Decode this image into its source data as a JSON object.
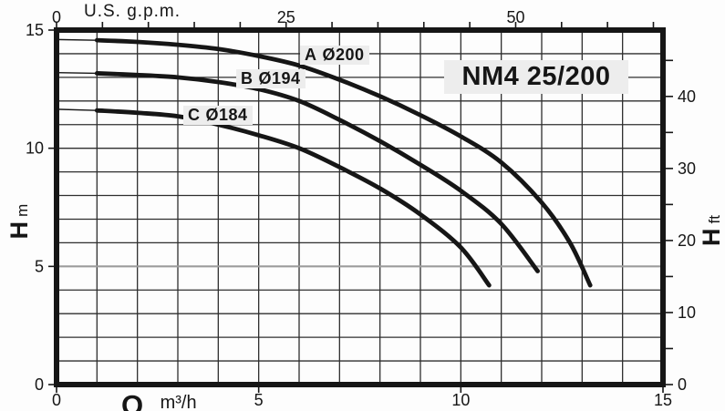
{
  "title": "NM4 25/200",
  "colors": {
    "ink": "#161616",
    "grid": "#2e2e2e",
    "gray_line": "#9c9c9c",
    "background": "#fdfdfd",
    "label_bg": "#ededed"
  },
  "chart_data": {
    "type": "line",
    "title": "NM4 25/200",
    "x_axis_bottom": {
      "label_prefix": "Q",
      "unit": "m³/h",
      "min": 0,
      "max": 15,
      "grid_step": 1,
      "ticks": [
        {
          "v": 0,
          "label": "0"
        },
        {
          "v": 5,
          "label": "5"
        },
        {
          "v": 10,
          "label": "10"
        },
        {
          "v": 15,
          "label": "15"
        }
      ]
    },
    "x_axis_top": {
      "title": "U.S. g.p.m.",
      "unit": "U.S. g.p.m.",
      "gpm_per_m3h": 4.4029,
      "minor_step_gpm": 5,
      "minor_max_gpm": 65,
      "ticks": [
        {
          "gpm": 0,
          "label": "0"
        },
        {
          "gpm": 25,
          "label": "25"
        },
        {
          "gpm": 50,
          "label": "50"
        }
      ]
    },
    "y_axis_left": {
      "label_prefix": "H",
      "unit": "m",
      "min": 0,
      "max": 15,
      "grid_step": 1,
      "gray_line_at": 5,
      "ticks": [
        {
          "v": 15,
          "label": "15"
        },
        {
          "v": 10,
          "label": "10"
        },
        {
          "v": 5,
          "label": "5"
        },
        {
          "v": 0,
          "label": "0"
        }
      ]
    },
    "y_axis_right": {
      "label_prefix": "H",
      "unit": "ft",
      "m_per_ft": 0.3048,
      "minor_step_ft": 5,
      "minor_max_ft": 45,
      "ticks": [
        {
          "ft": 40,
          "label": "40"
        },
        {
          "ft": 30,
          "label": "30"
        },
        {
          "ft": 20,
          "label": "20"
        },
        {
          "ft": 10,
          "label": "10"
        },
        {
          "ft": 0,
          "label": "0"
        }
      ]
    },
    "series": [
      {
        "id": "A",
        "diameter": "Ø200",
        "label": "A Ø200",
        "points": [
          [
            0,
            14.6
          ],
          [
            1,
            14.57
          ],
          [
            2,
            14.5
          ],
          [
            3,
            14.38
          ],
          [
            4,
            14.2
          ],
          [
            5,
            13.9
          ],
          [
            6,
            13.5
          ],
          [
            7,
            12.9
          ],
          [
            8,
            12.2
          ],
          [
            9,
            11.4
          ],
          [
            10,
            10.5
          ],
          [
            11,
            9.4
          ],
          [
            12,
            7.7
          ],
          [
            12.7,
            6.0
          ],
          [
            13.2,
            4.2
          ]
        ]
      },
      {
        "id": "B",
        "diameter": "Ø194",
        "label": "B Ø194",
        "points": [
          [
            0,
            13.2
          ],
          [
            1,
            13.17
          ],
          [
            2,
            13.1
          ],
          [
            3,
            13.0
          ],
          [
            4,
            12.8
          ],
          [
            5,
            12.5
          ],
          [
            6,
            12.0
          ],
          [
            7,
            11.2
          ],
          [
            8,
            10.3
          ],
          [
            9,
            9.3
          ],
          [
            10,
            8.2
          ],
          [
            11,
            6.8
          ],
          [
            11.9,
            4.8
          ]
        ]
      },
      {
        "id": "C",
        "diameter": "Ø184",
        "label": "C Ø184",
        "points": [
          [
            0,
            11.65
          ],
          [
            1,
            11.6
          ],
          [
            2,
            11.5
          ],
          [
            3,
            11.35
          ],
          [
            4,
            11.0
          ],
          [
            5,
            10.55
          ],
          [
            6,
            10.0
          ],
          [
            7,
            9.2
          ],
          [
            8,
            8.3
          ],
          [
            9,
            7.2
          ],
          [
            10,
            5.8
          ],
          [
            10.7,
            4.2
          ]
        ]
      }
    ],
    "layout": {
      "grid": true,
      "x_range": [
        0,
        15
      ],
      "y_range": [
        0,
        15
      ]
    }
  }
}
